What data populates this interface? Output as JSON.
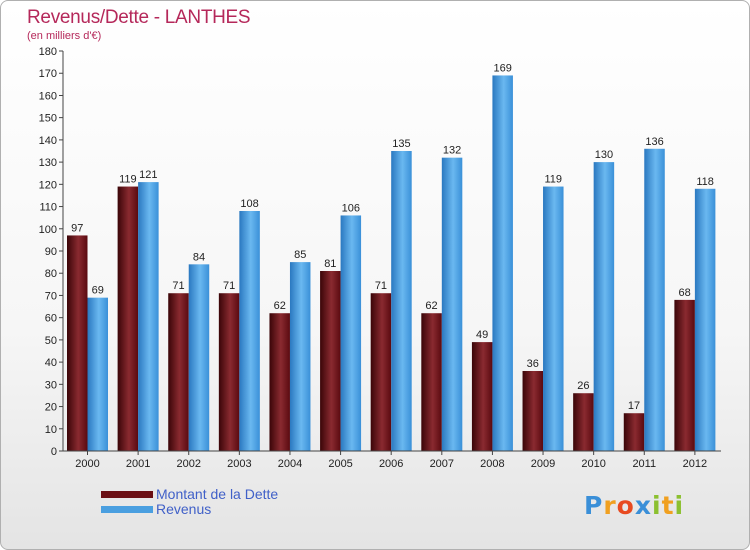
{
  "chart_data": {
    "type": "bar",
    "title": "Revenus/Dette - LANTHES",
    "subtitle": "(en milliers d'€)",
    "categories": [
      "2000",
      "2001",
      "2002",
      "2003",
      "2004",
      "2005",
      "2006",
      "2007",
      "2008",
      "2009",
      "2010",
      "2011",
      "2012"
    ],
    "series": [
      {
        "name": "Montant de la Dette",
        "color": "#6b0f14",
        "values": [
          97,
          119,
          71,
          71,
          62,
          81,
          71,
          62,
          49,
          36,
          26,
          17,
          68
        ]
      },
      {
        "name": "Revenus",
        "color": "#4a9fe0",
        "values": [
          69,
          121,
          84,
          108,
          85,
          106,
          135,
          132,
          169,
          119,
          130,
          136,
          118
        ]
      }
    ],
    "ylim": [
      0,
      180
    ],
    "yticks": [
      0,
      10,
      20,
      30,
      40,
      50,
      60,
      70,
      80,
      90,
      100,
      110,
      120,
      130,
      140,
      150,
      160,
      170,
      180
    ],
    "grid": false,
    "legend_position": "bottom-left"
  },
  "brand": {
    "letters": [
      "P",
      "r",
      "o",
      "x",
      "i",
      "t",
      "i"
    ],
    "colors": [
      "#3a8fd8",
      "#f0a020",
      "#e84a20",
      "#3a8fd8",
      "#8cc030",
      "#f0a020",
      "#8cc030"
    ]
  }
}
